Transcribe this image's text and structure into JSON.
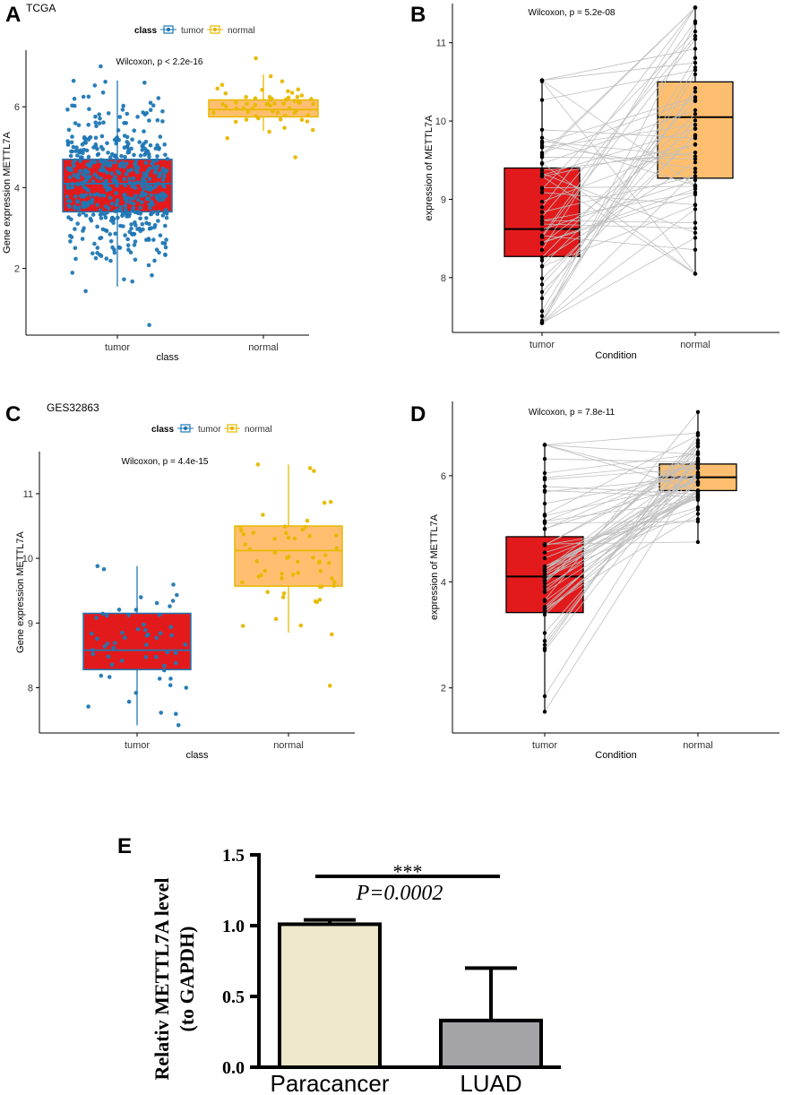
{
  "colors": {
    "tumor_blue": "#1f77b4",
    "normal_gold": "#e7b800",
    "tumor_red": "#e31a1c",
    "normal_orange": "#fdbf6f",
    "line_grey": "#bfbfbf",
    "paracancer_fill": "#ede8cb",
    "luad_fill": "#a4a4a8"
  },
  "chart_data": [
    {
      "id": "A",
      "panel_letter": "A",
      "dataset_label": "TCGA",
      "type": "box-scatter",
      "legend": {
        "title": "class",
        "entries": [
          "tumor",
          "normal"
        ]
      },
      "stat_label": "Wilcoxon, p < 2.2e-16",
      "xlabel": "class",
      "ylabel": "Gene expression METTL7A",
      "categories": [
        "tumor",
        "normal"
      ],
      "ylim": [
        0.35,
        7.4
      ],
      "yticks": [
        2,
        4,
        6
      ],
      "ytick_labels": [
        "2",
        "4",
        "6"
      ],
      "boxes": [
        {
          "q1": 3.4,
          "median": 4.1,
          "q3": 4.7,
          "whisker_low": 1.55,
          "whisker_high": 6.65
        },
        {
          "q1": 5.75,
          "median": 5.93,
          "q3": 6.17,
          "whisker_low": 5.4,
          "whisker_high": 6.8
        }
      ],
      "points": {
        "tumor": {
          "n": 520,
          "min": 0.6,
          "max": 7.0,
          "mean": 4.05,
          "sd": 0.95
        },
        "normal": {
          "n": 58,
          "min": 4.75,
          "max": 7.2,
          "mean": 5.97,
          "sd": 0.34
        }
      }
    },
    {
      "id": "B",
      "panel_letter": "B",
      "type": "paired-box",
      "stat_label": "Wilcoxon, p = 5.2e-08",
      "xlabel": "Condition",
      "ylabel": "expression of METTL7A",
      "categories": [
        "tumor",
        "normal"
      ],
      "ylim": [
        7.3,
        11.5
      ],
      "yticks": [
        8,
        9,
        10,
        11
      ],
      "ytick_labels": [
        "8",
        "9",
        "10",
        "11"
      ],
      "boxes": [
        {
          "q1": 8.27,
          "median": 8.62,
          "q3": 9.4,
          "whisker_low": 7.42,
          "whisker_high": 10.5
        },
        {
          "q1": 9.27,
          "median": 10.05,
          "q3": 10.5,
          "whisker_low": 8.05,
          "whisker_high": 11.45
        }
      ],
      "pairs": {
        "n": 56,
        "tumor_range": [
          7.42,
          10.52
        ],
        "normal_range": [
          8.05,
          11.45
        ]
      }
    },
    {
      "id": "C",
      "panel_letter": "C",
      "dataset_label": "GES32863",
      "type": "box-scatter",
      "legend": {
        "title": "class",
        "entries": [
          "tumor",
          "normal"
        ]
      },
      "stat_label": "Wilcoxon, p = 4.4e-15",
      "xlabel": "class",
      "ylabel": "Gene expression METTL7A",
      "categories": [
        "tumor",
        "normal"
      ],
      "ylim": [
        7.3,
        11.65
      ],
      "yticks": [
        8,
        9,
        10,
        11
      ],
      "ytick_labels": [
        "8",
        "9",
        "10",
        "11"
      ],
      "boxes": [
        {
          "q1": 8.28,
          "median": 8.58,
          "q3": 9.15,
          "whisker_low": 7.42,
          "whisker_high": 9.88
        },
        {
          "q1": 9.57,
          "median": 10.12,
          "q3": 10.5,
          "whisker_low": 8.85,
          "whisker_high": 11.45
        }
      ],
      "points": {
        "tumor": {
          "n": 58,
          "min": 7.42,
          "max": 9.88,
          "mean": 8.7,
          "sd": 0.55
        },
        "normal": {
          "n": 58,
          "min": 8.03,
          "max": 11.45,
          "mean": 10.0,
          "sd": 0.6
        }
      }
    },
    {
      "id": "D",
      "panel_letter": "D",
      "type": "paired-box",
      "stat_label": "Wilcoxon, p = 7.8e-11",
      "xlabel": "Condition",
      "ylabel": "expression of METTL7A",
      "categories": [
        "tumor",
        "normal"
      ],
      "ylim": [
        1.15,
        7.4
      ],
      "yticks": [
        2,
        4,
        6
      ],
      "ytick_labels": [
        "2",
        "4",
        "6"
      ],
      "boxes": [
        {
          "q1": 3.42,
          "median": 4.1,
          "q3": 4.85,
          "whisker_low": 1.55,
          "whisker_high": 6.58
        },
        {
          "q1": 5.72,
          "median": 5.97,
          "q3": 6.22,
          "whisker_low": 4.75,
          "whisker_high": 7.2
        }
      ],
      "pairs": {
        "n": 58,
        "tumor_range": [
          1.55,
          6.58
        ],
        "normal_range": [
          4.75,
          7.2
        ]
      }
    },
    {
      "id": "E",
      "panel_letter": "E",
      "type": "bar",
      "ylabel_line1": "Relativ METTL7A level",
      "ylabel_line2": "(to GAPDH)",
      "categories": [
        "Paracancer",
        "LUAD"
      ],
      "values": [
        1.01,
        0.33
      ],
      "error_upper": [
        0.03,
        0.37
      ],
      "ylim": [
        0,
        1.5
      ],
      "yticks": [
        0,
        0.5,
        1.0,
        1.5
      ],
      "ytick_labels": [
        "0.0",
        "0.5",
        "1.0",
        "1.5"
      ],
      "significance": "***",
      "p_label": "P=0.0002"
    }
  ]
}
